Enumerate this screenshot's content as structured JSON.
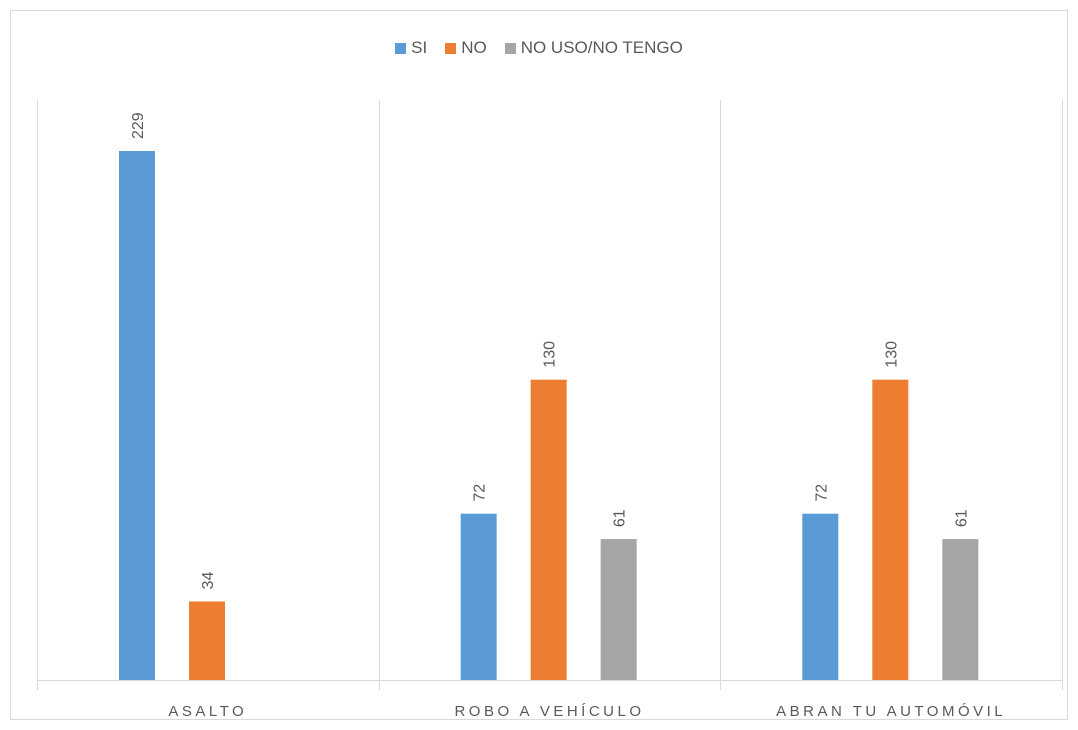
{
  "chart_data": {
    "type": "bar",
    "categories": [
      "ASALTO",
      "ROBO A VEHÍCULO",
      "ABRAN TU AUTOMÓVIL"
    ],
    "series": [
      {
        "name": "SI",
        "values": [
          229,
          72,
          72
        ],
        "color": "#5b9bd5"
      },
      {
        "name": "NO",
        "values": [
          34,
          130,
          130
        ],
        "color": "#ed7d31"
      },
      {
        "name": "NO USO/NO TENGO",
        "values": [
          null,
          61,
          61
        ],
        "color": "#a5a5a5"
      }
    ],
    "ylim": [
      0,
      250
    ],
    "legend_position": "top-center",
    "data_labels": true,
    "grid": false
  }
}
